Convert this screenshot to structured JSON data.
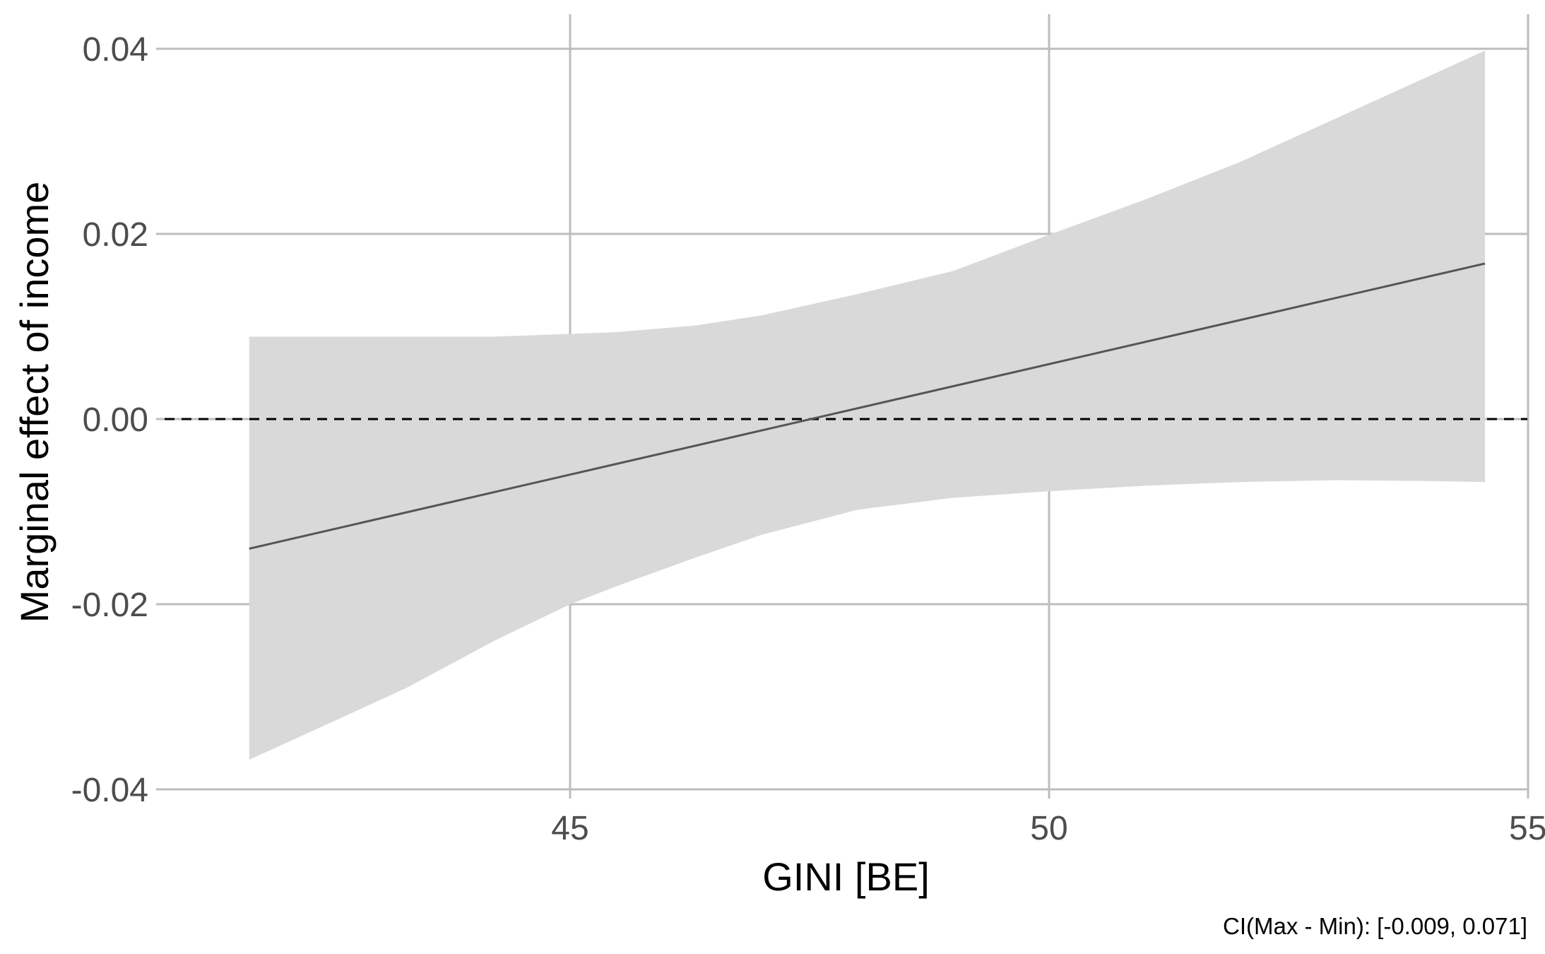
{
  "chart_data": {
    "type": "line",
    "xlabel": "GINI [BE]",
    "ylabel": "Marginal effect of income",
    "caption": "CI(Max - Min): [-0.009, 0.071]",
    "xlim": [
      40.7,
      55
    ],
    "ylim": [
      -0.04,
      0.04
    ],
    "x_ticks": [
      45,
      50,
      55
    ],
    "x_tick_labels": [
      "45",
      "50",
      "55"
    ],
    "y_ticks": [
      -0.04,
      -0.02,
      0.0,
      0.02,
      0.04
    ],
    "y_tick_labels": [
      "-0.04",
      "-0.02",
      "0.00",
      "0.02",
      "0.04"
    ],
    "grid": true,
    "reference_line": {
      "y": 0,
      "style": "dashed",
      "color": "#000000"
    },
    "line_color": "#555555",
    "band_color": "#d9d9d9",
    "grid_color": "#bdbdbd",
    "series": [
      {
        "x": [
          41.65,
          54.55
        ],
        "y": [
          -0.014,
          0.0168
        ]
      }
    ],
    "ci_band": {
      "x": [
        41.65,
        42.5,
        43.3,
        44.2,
        45.0,
        45.5,
        46.3,
        47.0,
        48.0,
        49.0,
        50.0,
        51.0,
        52.0,
        53.0,
        54.0,
        54.55
      ],
      "lower": [
        -0.0368,
        -0.0328,
        -0.029,
        -0.024,
        -0.02,
        -0.018,
        -0.015,
        -0.0125,
        -0.0098,
        -0.0085,
        -0.0078,
        -0.0072,
        -0.0068,
        -0.0066,
        -0.0067,
        -0.0068
      ],
      "upper": [
        0.0089,
        0.0089,
        0.0089,
        0.0089,
        0.0092,
        0.0094,
        0.0101,
        0.0112,
        0.0135,
        0.016,
        0.0199,
        0.0237,
        0.0278,
        0.0325,
        0.0372,
        0.0398
      ]
    }
  }
}
